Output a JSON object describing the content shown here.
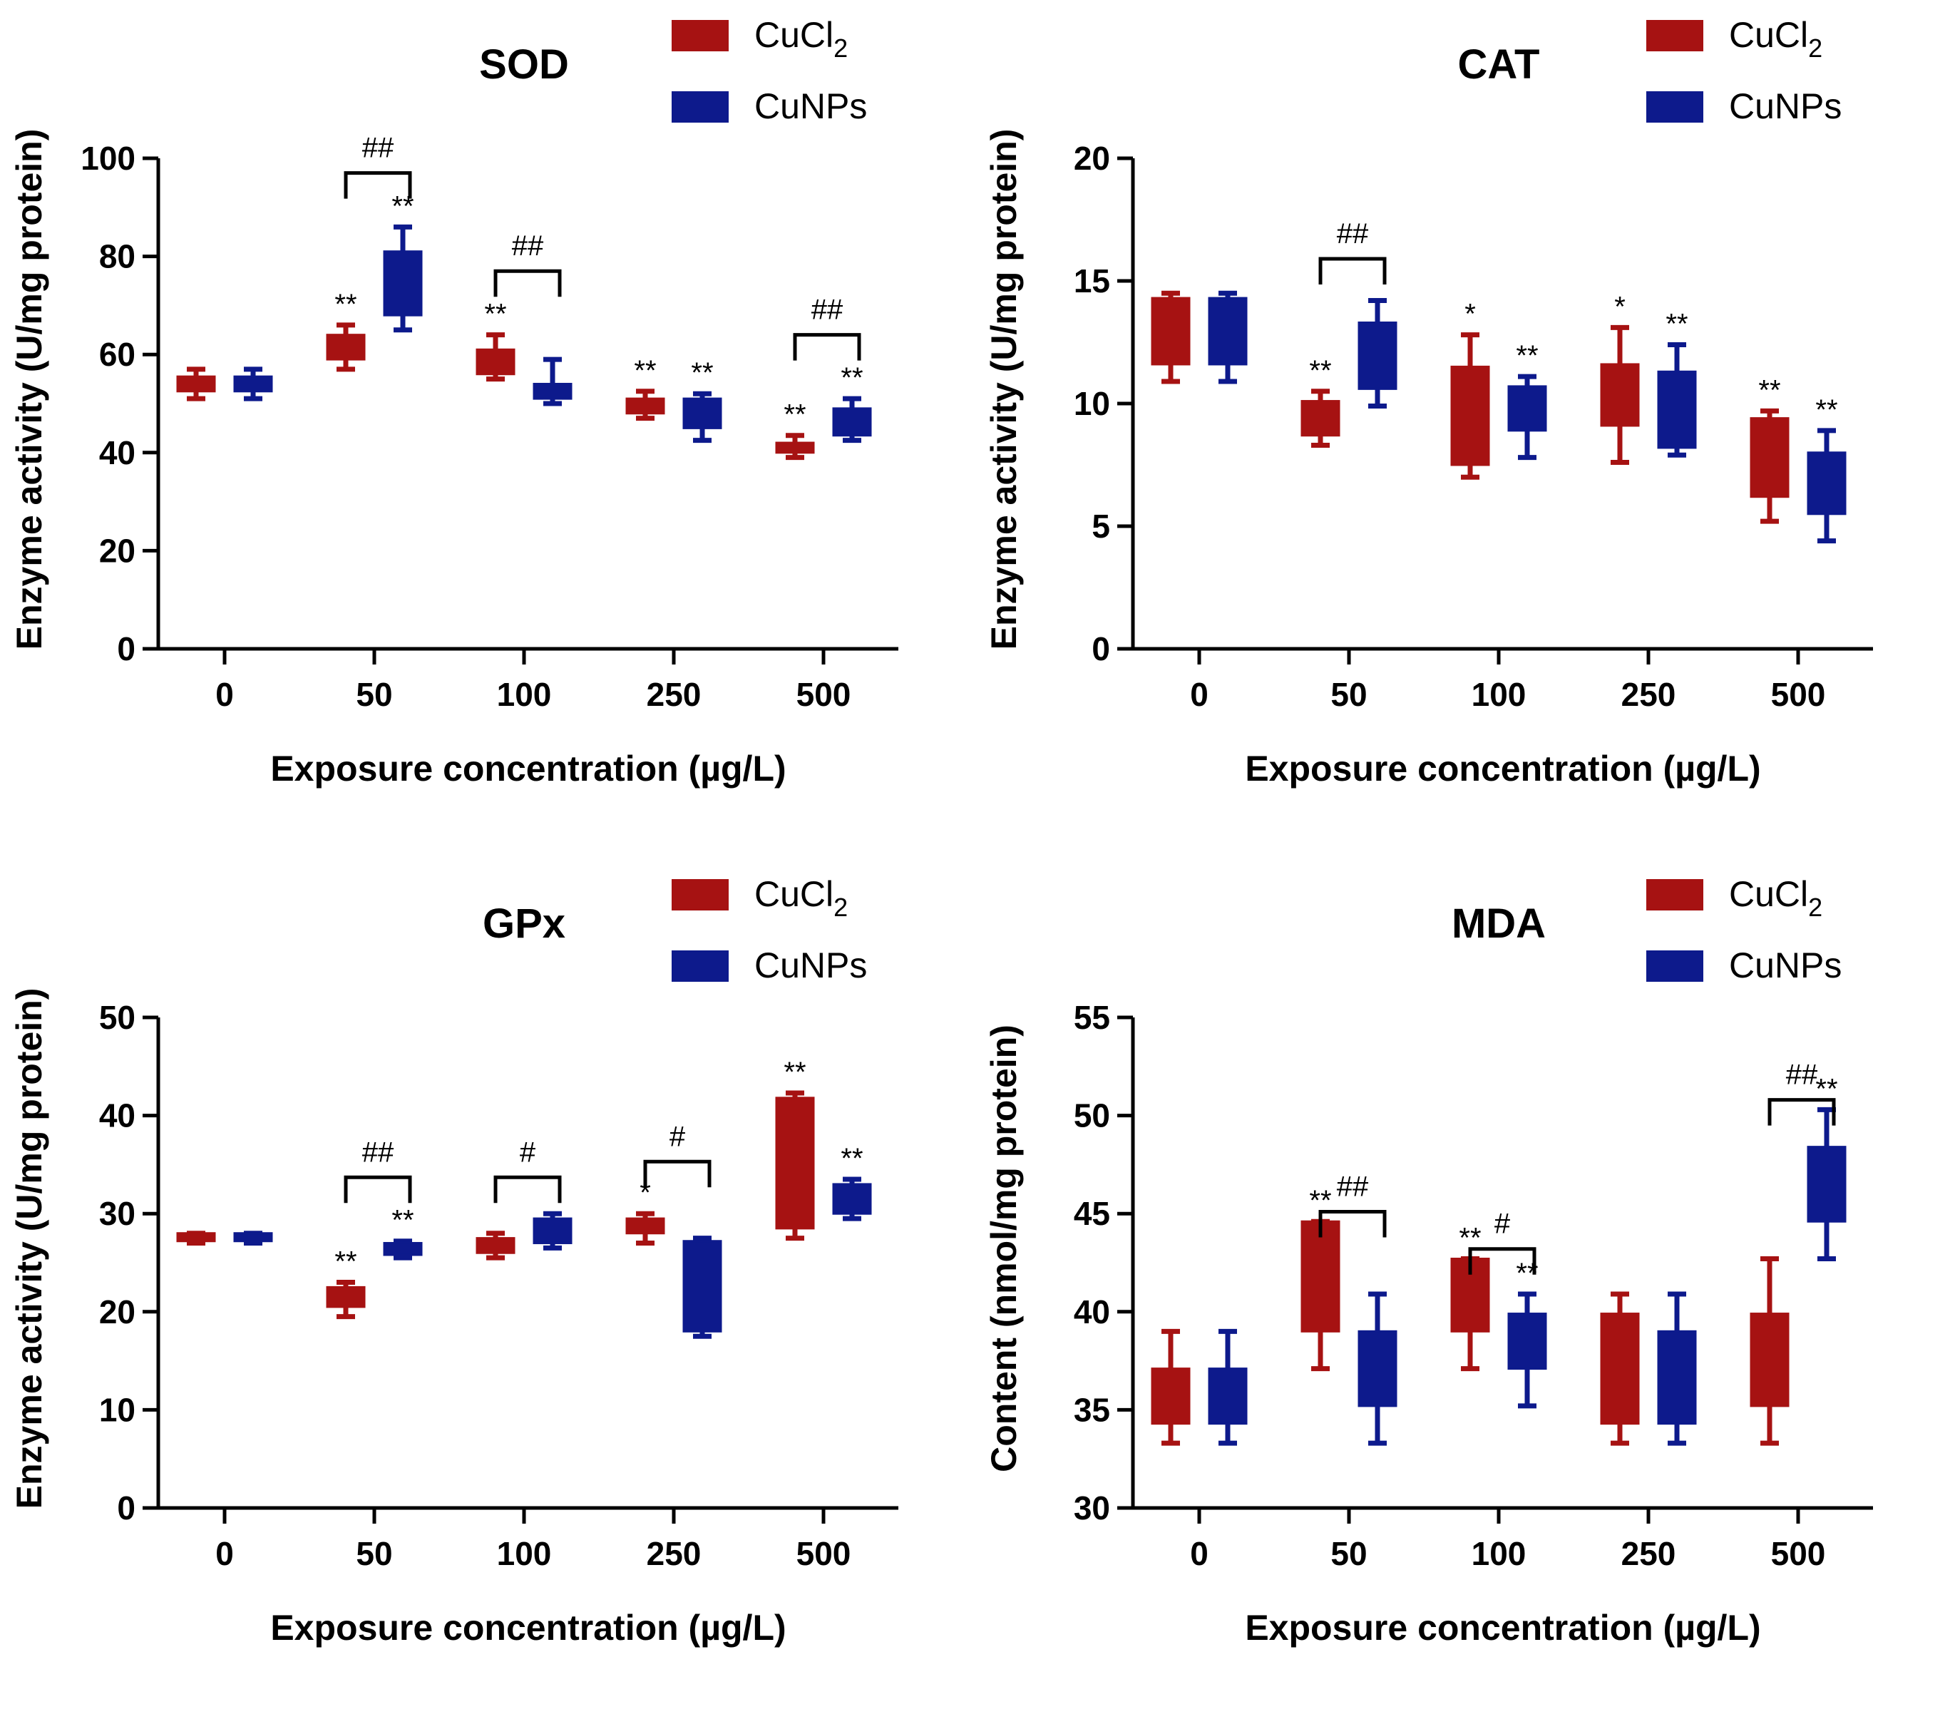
{
  "figure": {
    "xlabel": "Exposure concentration (µg/L)",
    "categories": [
      "0",
      "50",
      "100",
      "250",
      "500"
    ],
    "legend": [
      {
        "name": "CuCl",
        "subscript": "2",
        "color": "#a61212"
      },
      {
        "name": "CuNPs",
        "subscript": "",
        "color": "#0d1a8c"
      }
    ]
  },
  "chart_data": [
    {
      "type": "box",
      "title": "SOD",
      "ylabel": "Enzyme activity (U/mg protein)",
      "xlabel": "Exposure concentration (µg/L)",
      "categories": [
        "0",
        "50",
        "100",
        "250",
        "500"
      ],
      "ylim": [
        0,
        100
      ],
      "yticks": [
        "0",
        "20",
        "40",
        "60",
        "80",
        "100"
      ],
      "series": [
        {
          "name": "CuCl2",
          "color": "#a61212",
          "boxes": [
            {
              "min": 51,
              "q1": 52.5,
              "q3": 55.5,
              "max": 57
            },
            {
              "min": 57,
              "q1": 59,
              "q3": 64,
              "max": 66
            },
            {
              "min": 55,
              "q1": 56,
              "q3": 61,
              "max": 64
            },
            {
              "min": 47,
              "q1": 48,
              "q3": 51,
              "max": 52.5
            },
            {
              "min": 39,
              "q1": 40,
              "q3": 42,
              "max": 43.5
            }
          ],
          "sig": [
            "",
            "**",
            "**",
            "**",
            "**"
          ]
        },
        {
          "name": "CuNPs",
          "color": "#0d1a8c",
          "boxes": [
            {
              "min": 51,
              "q1": 52.5,
              "q3": 55.5,
              "max": 57
            },
            {
              "min": 65,
              "q1": 68,
              "q3": 81,
              "max": 86
            },
            {
              "min": 50,
              "q1": 51,
              "q3": 54,
              "max": 59
            },
            {
              "min": 42.5,
              "q1": 45,
              "q3": 51,
              "max": 52
            },
            {
              "min": 42.5,
              "q1": 43.5,
              "q3": 49,
              "max": 51
            }
          ],
          "sig": [
            "",
            "**",
            "",
            "**",
            "**"
          ]
        }
      ],
      "brackets": [
        {
          "category": "50",
          "label": "##",
          "y": 97
        },
        {
          "category": "100",
          "label": "##",
          "y": 77
        },
        {
          "category": "500",
          "label": "##",
          "y": 64
        }
      ]
    },
    {
      "type": "box",
      "title": "CAT",
      "ylabel": "Enzyme activity (U/mg protein)",
      "xlabel": "Exposure concentration (µg/L)",
      "categories": [
        "0",
        "50",
        "100",
        "250",
        "500"
      ],
      "ylim": [
        0,
        20
      ],
      "yticks": [
        "0",
        "5",
        "10",
        "15",
        "20"
      ],
      "series": [
        {
          "name": "CuCl2",
          "color": "#a61212",
          "boxes": [
            {
              "min": 10.9,
              "q1": 11.6,
              "q3": 14.3,
              "max": 14.5
            },
            {
              "min": 8.3,
              "q1": 8.7,
              "q3": 10.1,
              "max": 10.5
            },
            {
              "min": 7.0,
              "q1": 7.5,
              "q3": 11.5,
              "max": 12.8
            },
            {
              "min": 7.6,
              "q1": 9.1,
              "q3": 11.6,
              "max": 13.1
            },
            {
              "min": 5.2,
              "q1": 6.2,
              "q3": 9.4,
              "max": 9.7
            }
          ],
          "sig": [
            "",
            "**",
            "*",
            "*",
            "**"
          ]
        },
        {
          "name": "CuNPs",
          "color": "#0d1a8c",
          "boxes": [
            {
              "min": 10.9,
              "q1": 11.6,
              "q3": 14.3,
              "max": 14.5
            },
            {
              "min": 9.9,
              "q1": 10.6,
              "q3": 13.3,
              "max": 14.2
            },
            {
              "min": 7.8,
              "q1": 8.9,
              "q3": 10.7,
              "max": 11.1
            },
            {
              "min": 7.9,
              "q1": 8.2,
              "q3": 11.3,
              "max": 12.4
            },
            {
              "min": 4.4,
              "q1": 5.5,
              "q3": 8.0,
              "max": 8.9
            }
          ],
          "sig": [
            "",
            "",
            "**",
            "**",
            "**"
          ]
        }
      ],
      "brackets": [
        {
          "category": "50",
          "label": "##",
          "y": 15.9
        }
      ]
    },
    {
      "type": "box",
      "title": "GPx",
      "ylabel": "Enzyme activity (U/mg protein)",
      "xlabel": "Exposure concentration (µg/L)",
      "categories": [
        "0",
        "50",
        "100",
        "250",
        "500"
      ],
      "ylim": [
        0,
        50
      ],
      "yticks": [
        "0",
        "10",
        "20",
        "30",
        "40",
        "50"
      ],
      "series": [
        {
          "name": "CuCl2",
          "color": "#a61212",
          "boxes": [
            {
              "min": 27,
              "q1": 27.2,
              "q3": 28,
              "max": 28
            },
            {
              "min": 19.5,
              "q1": 20.5,
              "q3": 22.5,
              "max": 23
            },
            {
              "min": 25.5,
              "q1": 26,
              "q3": 27.5,
              "max": 28
            },
            {
              "min": 27,
              "q1": 28,
              "q3": 29.5,
              "max": 30
            },
            {
              "min": 27.5,
              "q1": 28.5,
              "q3": 41.8,
              "max": 42.3
            }
          ],
          "sig": [
            "",
            "**",
            "",
            "*",
            "**"
          ]
        },
        {
          "name": "CuNPs",
          "color": "#0d1a8c",
          "boxes": [
            {
              "min": 27,
              "q1": 27.2,
              "q3": 28,
              "max": 28
            },
            {
              "min": 25.5,
              "q1": 25.8,
              "q3": 27,
              "max": 27.2
            },
            {
              "min": 26.5,
              "q1": 27,
              "q3": 29.5,
              "max": 30
            },
            {
              "min": 17.5,
              "q1": 18,
              "q3": 27.2,
              "max": 27.5
            },
            {
              "min": 29.5,
              "q1": 30,
              "q3": 33,
              "max": 33.5
            }
          ],
          "sig": [
            "",
            "**",
            "",
            "",
            "**"
          ]
        }
      ],
      "brackets": [
        {
          "category": "50",
          "label": "##",
          "y": 33.7
        },
        {
          "category": "100",
          "label": "#",
          "y": 33.7
        },
        {
          "category": "250",
          "label": "#",
          "y": 35.3
        }
      ]
    },
    {
      "type": "box",
      "title": "MDA",
      "ylabel": "Content (nmol/mg protein)",
      "xlabel": "Exposure concentration (µg/L)",
      "categories": [
        "0",
        "50",
        "100",
        "250",
        "500"
      ],
      "ylim": [
        30,
        55
      ],
      "yticks": [
        "30",
        "35",
        "40",
        "45",
        "50",
        "55"
      ],
      "series": [
        {
          "name": "CuCl2",
          "color": "#a61212",
          "boxes": [
            {
              "min": 33.3,
              "q1": 34.3,
              "q3": 37.1,
              "max": 39.0
            },
            {
              "min": 37.1,
              "q1": 39.0,
              "q3": 44.6,
              "max": 44.6
            },
            {
              "min": 37.1,
              "q1": 39.0,
              "q3": 42.7,
              "max": 42.7
            },
            {
              "min": 33.3,
              "q1": 34.3,
              "q3": 39.9,
              "max": 40.9
            },
            {
              "min": 33.3,
              "q1": 35.2,
              "q3": 39.9,
              "max": 42.7
            }
          ],
          "sig": [
            "",
            "**",
            "**",
            "",
            ""
          ]
        },
        {
          "name": "CuNPs",
          "color": "#0d1a8c",
          "boxes": [
            {
              "min": 33.3,
              "q1": 34.3,
              "q3": 37.1,
              "max": 39.0
            },
            {
              "min": 33.3,
              "q1": 35.2,
              "q3": 39.0,
              "max": 40.9
            },
            {
              "min": 35.2,
              "q1": 37.1,
              "q3": 39.9,
              "max": 40.9
            },
            {
              "min": 33.3,
              "q1": 34.3,
              "q3": 39.0,
              "max": 40.9
            },
            {
              "min": 42.7,
              "q1": 44.6,
              "q3": 48.4,
              "max": 50.3
            }
          ],
          "sig": [
            "",
            "",
            "**",
            "",
            "**"
          ]
        }
      ],
      "brackets": [
        {
          "category": "50",
          "label": "##",
          "y": 45.1
        },
        {
          "category": "100",
          "label": "#",
          "y": 43.2
        },
        {
          "category": "500",
          "label": "##",
          "y": 50.8
        }
      ]
    }
  ]
}
